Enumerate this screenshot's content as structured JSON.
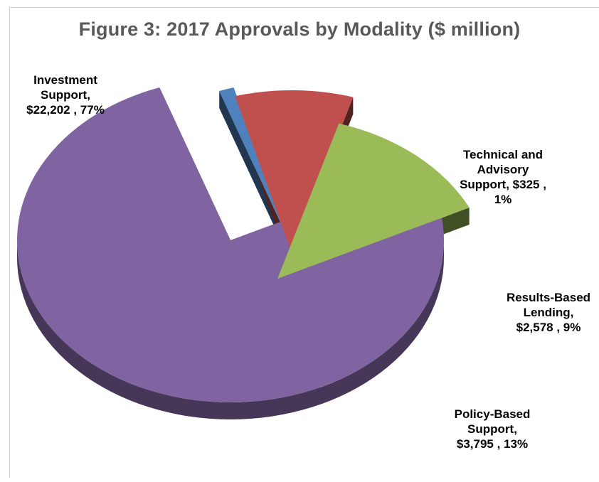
{
  "chart_data": {
    "type": "pie",
    "title": "Figure 3: 2017 Approvals by Modality ($ million)",
    "categories": [
      "Investment Support",
      "Technical and Advisory Support",
      "Results-Based Lending",
      "Policy-Based Support"
    ],
    "values": [
      22202,
      325,
      2578,
      3795
    ],
    "percent": [
      77,
      1,
      9,
      13
    ],
    "colors": {
      "investment": "#8064A2",
      "technical": "#4F81BD",
      "results": "#C0504D",
      "policy": "#9BBB59"
    },
    "labels": {
      "investment": [
        "Investment",
        "Support,",
        "$22,202 , 77%"
      ],
      "technical": [
        "Technical and",
        "Advisory",
        "Support,  $325 ,",
        "1%"
      ],
      "results": [
        "Results-Based",
        "Lending,",
        "$2,578 , 9%"
      ],
      "policy": [
        "Policy-Based",
        "Support,",
        "$3,795 , 13%"
      ]
    },
    "exploded": true,
    "style": "3d"
  }
}
